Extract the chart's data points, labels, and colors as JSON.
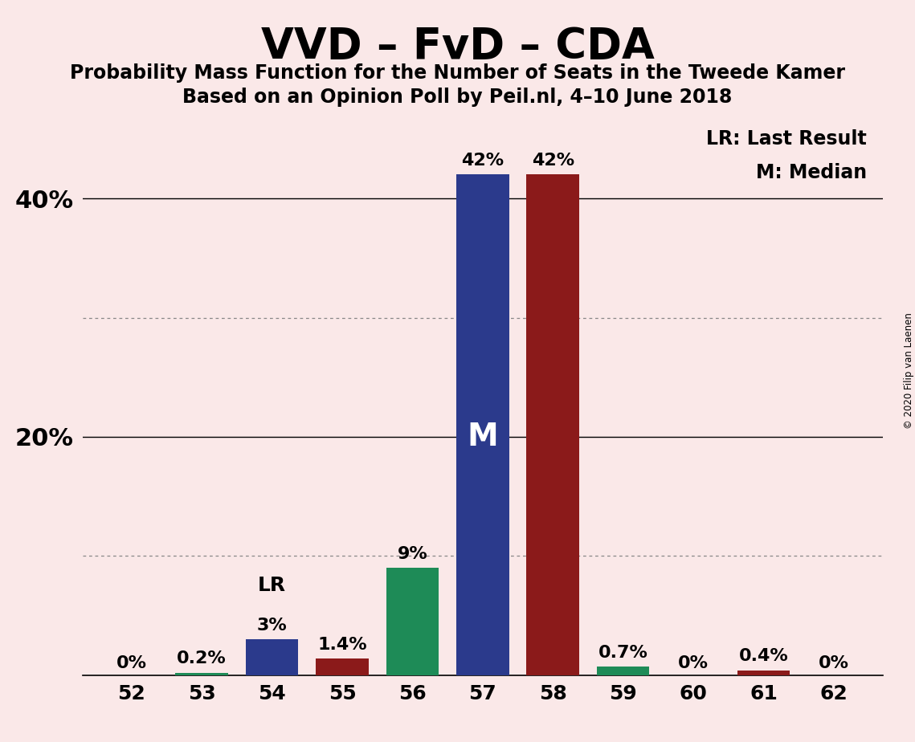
{
  "title": "VVD – FvD – CDA",
  "subtitle1": "Probability Mass Function for the Number of Seats in the Tweede Kamer",
  "subtitle2": "Based on an Opinion Poll by Peil.nl, 4–10 June 2018",
  "copyright": "© 2020 Filip van Laenen",
  "legend_lr": "LR: Last Result",
  "legend_m": "M: Median",
  "background_color": "#FAE8E8",
  "seats": [
    52,
    53,
    54,
    55,
    56,
    57,
    58,
    59,
    60,
    61,
    62
  ],
  "values": [
    0.0,
    0.2,
    3.0,
    1.4,
    9.0,
    42.0,
    42.0,
    0.7,
    0.0,
    0.4,
    0.0
  ],
  "bar_colors": [
    "#1E8B57",
    "#1E8B57",
    "#2B3A8C",
    "#8B1A1A",
    "#1E8B57",
    "#2B3A8C",
    "#8B1A1A",
    "#1E8B57",
    "#2B3A8C",
    "#8B1A1A",
    "#2B3A8C"
  ],
  "labels": [
    "0%",
    "0.2%",
    "3%",
    "1.4%",
    "9%",
    "42%",
    "42%",
    "0.7%",
    "0%",
    "0.4%",
    "0%"
  ],
  "label_show_zero": true,
  "median_seat": 57,
  "lr_seat": 54,
  "ylim_max": 47,
  "dotted_lines": [
    10,
    30
  ],
  "solid_lines": [
    20,
    40
  ],
  "ytick_positions": [
    20,
    40
  ],
  "ytick_labels": [
    "20%",
    "40%"
  ],
  "color_vvd": "#2B3A8C",
  "color_fvd": "#8B1A1A",
  "color_cda": "#1E8B57",
  "bar_width": 0.75,
  "label_fontsize": 16,
  "lr_label_fontsize": 18,
  "m_label_fontsize": 28,
  "ytick_fontsize": 22,
  "xtick_fontsize": 18,
  "title_fontsize": 38,
  "subtitle_fontsize": 17,
  "legend_fontsize": 17
}
